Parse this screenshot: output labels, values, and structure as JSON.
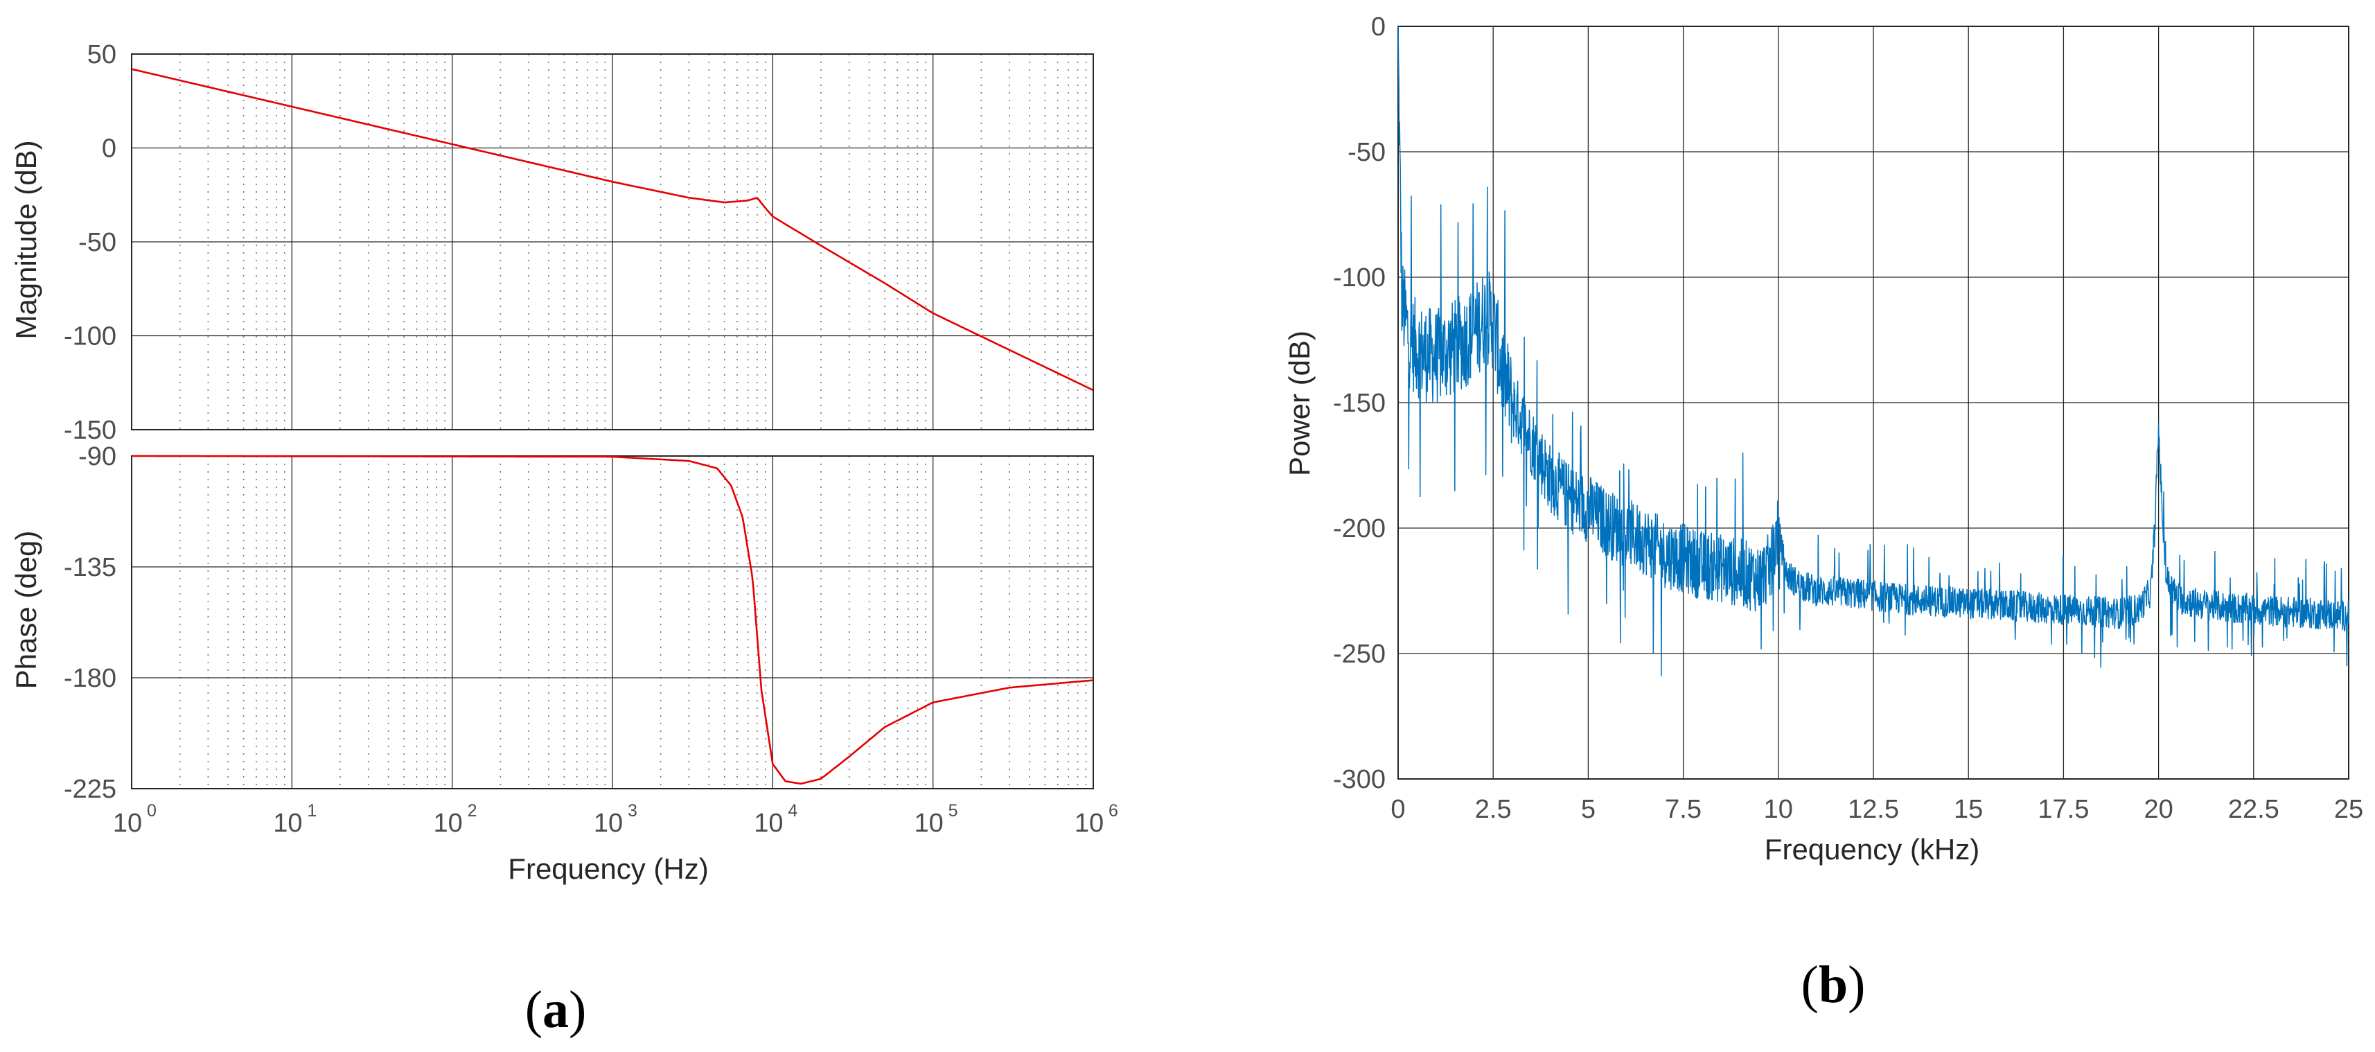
{
  "chart_data": [
    {
      "type": "line",
      "panel": "a",
      "subplot": "magnitude",
      "xscale": "log",
      "xlim": [
        1,
        1000000
      ],
      "ylim": [
        -150,
        50
      ],
      "xlabel": "Frequency  (Hz)",
      "ylabel": "Magnitude (dB)",
      "yticks": [
        "50",
        "0",
        "-50",
        "-100",
        "-150"
      ],
      "grid": true,
      "color": "#e60000",
      "x": [
        1,
        10,
        100,
        1000,
        3000,
        5000,
        7000,
        8000,
        9000,
        10000,
        20000,
        50000,
        100000,
        1000000
      ],
      "y": [
        42,
        22,
        2,
        -18,
        -26.5,
        -29,
        -28,
        -26.5,
        -32,
        -36.5,
        -52,
        -72,
        -88,
        -129
      ]
    },
    {
      "type": "line",
      "panel": "a",
      "subplot": "phase",
      "xscale": "log",
      "xlim": [
        1,
        1000000
      ],
      "ylim": [
        -225,
        -90
      ],
      "xlabel": "Frequency  (Hz)",
      "ylabel": "Phase (deg)",
      "yticks": [
        "-90",
        "-135",
        "-180",
        "-225"
      ],
      "xticks": [
        {
          "base": "10",
          "exp": "0"
        },
        {
          "base": "10",
          "exp": "1"
        },
        {
          "base": "10",
          "exp": "2"
        },
        {
          "base": "10",
          "exp": "3"
        },
        {
          "base": "10",
          "exp": "4"
        },
        {
          "base": "10",
          "exp": "5"
        },
        {
          "base": "10",
          "exp": "6"
        }
      ],
      "grid": true,
      "color": "#e60000",
      "x": [
        1,
        1000,
        3000,
        4500,
        5500,
        6500,
        7500,
        8500,
        10000,
        12000,
        15000,
        20000,
        30000,
        50000,
        100000,
        300000,
        1000000
      ],
      "y": [
        -90,
        -90.3,
        -92,
        -95,
        -102,
        -115,
        -140,
        -185,
        -215,
        -222,
        -223,
        -221,
        -212,
        -200,
        -190,
        -184,
        -181
      ]
    },
    {
      "type": "line",
      "panel": "b",
      "xlim": [
        0,
        25
      ],
      "ylim": [
        -300,
        0
      ],
      "xlabel": "Frequency (kHz)",
      "ylabel": "Power (dB)",
      "xticks": [
        "0",
        "2.5",
        "5",
        "7.5",
        "10",
        "12.5",
        "15",
        "17.5",
        "20",
        "22.5",
        "25"
      ],
      "yticks": [
        "0",
        "-50",
        "-100",
        "-150",
        "-200",
        "-250",
        "-300"
      ],
      "grid": true,
      "color": "#0072bd",
      "x": [
        0,
        0.05,
        0.1,
        0.3,
        0.6,
        1.0,
        1.5,
        2.0,
        2.3,
        2.5,
        2.7,
        3.0,
        3.5,
        4.0,
        4.5,
        5.0,
        5.5,
        6.0,
        6.5,
        7.0,
        7.5,
        8.0,
        8.5,
        9.0,
        9.5,
        9.8,
        10.0,
        10.2,
        10.5,
        11.0,
        12.0,
        13.0,
        14.0,
        15.0,
        16.0,
        17.0,
        18.0,
        19.0,
        19.5,
        19.8,
        19.9,
        20.0,
        20.1,
        20.2,
        20.5,
        21.0,
        22.0,
        23.0,
        24.0,
        25.0
      ],
      "y": [
        0,
        -60,
        -110,
        -125,
        -130,
        -132,
        -128,
        -122,
        -115,
        -118,
        -135,
        -150,
        -165,
        -180,
        -188,
        -192,
        -198,
        -202,
        -205,
        -210,
        -212,
        -215,
        -216,
        -218,
        -220,
        -215,
        -200,
        -218,
        -222,
        -225,
        -226,
        -228,
        -229,
        -230,
        -231,
        -232,
        -233,
        -234,
        -232,
        -225,
        -200,
        -160,
        -195,
        -220,
        -228,
        -230,
        -232,
        -233,
        -234,
        -235
      ]
    }
  ],
  "panel_labels": {
    "a": "a",
    "b": "b"
  }
}
